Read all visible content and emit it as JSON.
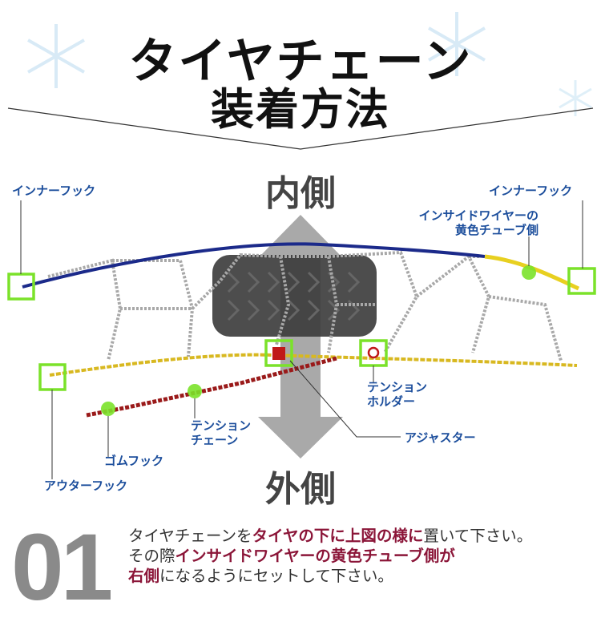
{
  "title": {
    "line1": "タイヤチェーン",
    "line2": "装着方法"
  },
  "directions": {
    "inner": "内側",
    "outer": "外側"
  },
  "labels": {
    "inner_hook_left": "インナーフック",
    "inner_hook_right": "インナーフック",
    "inside_wire_line1": "インサイドワイヤーの",
    "inside_wire_line2": "黄色チューブ側",
    "tension_holder_line1": "テンション",
    "tension_holder_line2": "ホルダー",
    "adjuster": "アジャスター",
    "tension_chain_line1": "テンション",
    "tension_chain_line2": "チェーン",
    "rubber_hook": "ゴムフック",
    "outer_hook": "アウターフック"
  },
  "step": {
    "number": "01",
    "line1": [
      {
        "t": "タイヤチェーンを",
        "em": false
      },
      {
        "t": "タイヤの下に上図の様に",
        "em": true
      },
      {
        "t": "置いて下さい。",
        "em": false
      }
    ],
    "line2": [
      {
        "t": "その際",
        "em": false
      },
      {
        "t": "インサイドワイヤーの黄色チューブ側が",
        "em": true
      }
    ],
    "line3": [
      {
        "t": "右側",
        "em": true
      },
      {
        "t": "になるようにセットして下さい。",
        "em": false
      }
    ]
  },
  "colors": {
    "highlight": "#7be22a",
    "label_text": "#1c4e9c",
    "emphasis": "#8b1538",
    "inner_wire": "#1b2a8a",
    "tube": "#e8d020",
    "tension_chain": "#9a1a1a"
  }
}
